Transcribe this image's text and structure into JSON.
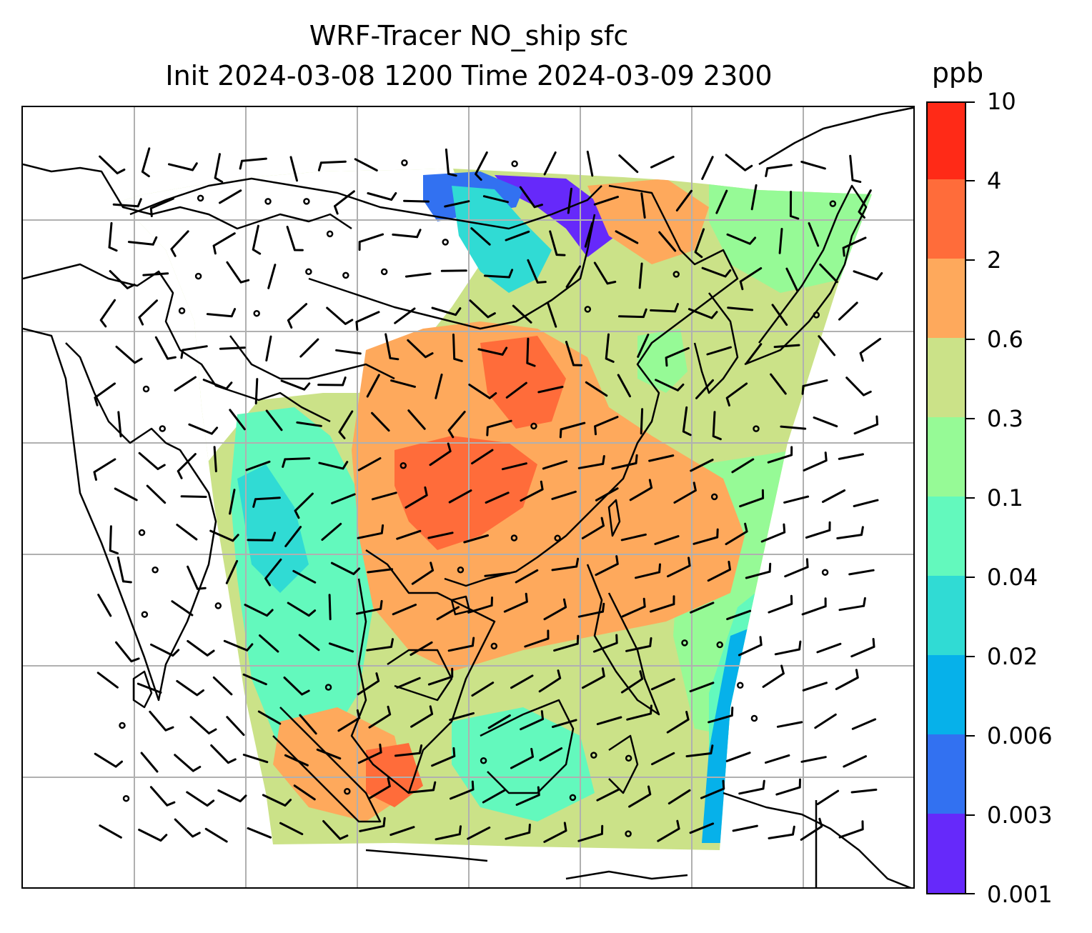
{
  "title_line1": "WRF-Tracer NO_ship sfc",
  "title_line2": "Init 2024-03-08 1200 Time 2024-03-09 2300",
  "colorbar": {
    "unit": "ppb",
    "tick_labels": [
      "0.001",
      "0.003",
      "0.006",
      "0.02",
      "0.04",
      "0.1",
      "0.3",
      "0.6",
      "2",
      "4",
      "10"
    ],
    "colors": [
      "#6629fa",
      "#3271f1",
      "#06b1ea",
      "#30dbd4",
      "#63f9bd",
      "#96fa96",
      "#cbe288",
      "#fea95c",
      "#ff6c3a",
      "#ff2a17"
    ]
  },
  "map": {
    "gridlines": true,
    "field": "NO_ship surface concentration",
    "overlays": [
      "coastlines",
      "country borders",
      "wind barbs"
    ],
    "background_color": "#ffffff",
    "grid_color": "#b0b0b0"
  }
}
